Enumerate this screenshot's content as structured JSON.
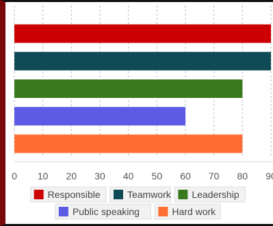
{
  "chart_data": {
    "type": "bar",
    "orientation": "horizontal",
    "categories": [
      "Responsible",
      "Teamwork",
      "Leadership",
      "Public speaking",
      "Hard work"
    ],
    "values": [
      90,
      90,
      80,
      60,
      80
    ],
    "colors": [
      "#cc0000",
      "#0f4a57",
      "#3a7a1e",
      "#5b5be3",
      "#ff6d33"
    ],
    "xlim": [
      0,
      90
    ],
    "x_ticks": [
      "0",
      "10",
      "20",
      "30",
      "40",
      "50",
      "60",
      "70",
      "80",
      "90"
    ],
    "grid": "vertical-dashed",
    "legend": {
      "placement": "bottom",
      "items": [
        "Responsible",
        "Teamwork",
        "Leadership",
        "Public speaking",
        "Hard work"
      ]
    }
  }
}
